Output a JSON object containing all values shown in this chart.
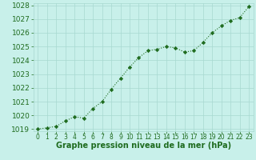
{
  "x": [
    0,
    1,
    2,
    3,
    4,
    5,
    6,
    7,
    8,
    9,
    10,
    11,
    12,
    13,
    14,
    15,
    16,
    17,
    18,
    19,
    20,
    21,
    22,
    23
  ],
  "y": [
    1019.0,
    1019.1,
    1019.2,
    1019.6,
    1019.9,
    1019.8,
    1020.5,
    1021.0,
    1021.9,
    1022.7,
    1023.5,
    1024.2,
    1024.7,
    1024.8,
    1025.0,
    1024.9,
    1024.6,
    1024.7,
    1025.3,
    1026.0,
    1026.5,
    1026.9,
    1027.1,
    1027.9
  ],
  "line_color": "#1e6b1e",
  "marker_color": "#1e6b1e",
  "bg_color": "#c8f0ea",
  "grid_color": "#a8d8d0",
  "xlabel": "Graphe pression niveau de la mer (hPa)",
  "xlabel_color": "#1e6b1e",
  "tick_color": "#1e6b1e",
  "ylim_min": 1019,
  "ylim_max": 1028,
  "ytick_step": 1,
  "font_size_xlabel": 7.0,
  "font_size_tick_y": 6.5,
  "font_size_tick_x": 5.5
}
